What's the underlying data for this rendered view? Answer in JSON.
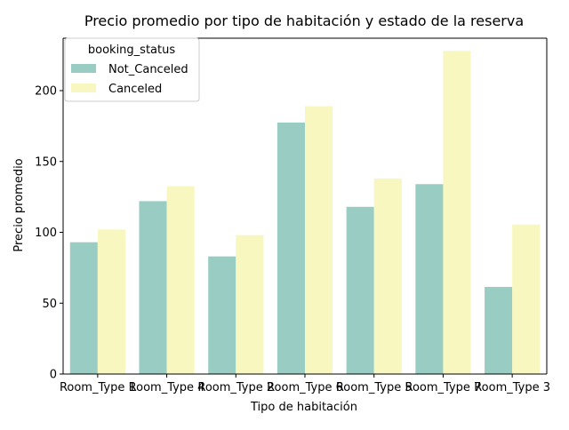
{
  "chart_data": {
    "type": "bar",
    "title": "Precio promedio por tipo de habitación y estado de la reserva",
    "xlabel": "Tipo de habitación",
    "ylabel": "Precio promedio",
    "categories": [
      "Room_Type 1",
      "Room_Type 4",
      "Room_Type 2",
      "Room_Type 6",
      "Room_Type 5",
      "Room_Type 7",
      "Room_Type 3"
    ],
    "series": [
      {
        "name": "Not_Canceled",
        "color": "#99ccc2",
        "values": [
          93,
          122,
          83,
          177.5,
          118,
          134,
          61.5
        ]
      },
      {
        "name": "Canceled",
        "color": "#f7f7bf",
        "values": [
          102,
          132.5,
          98,
          189,
          138,
          228,
          105.5
        ]
      }
    ],
    "ylim": [
      0,
      237
    ],
    "yticks": [
      0,
      50,
      100,
      150,
      200
    ],
    "legend": {
      "title": "booking_status",
      "position": "top-left"
    },
    "grid": false
  }
}
